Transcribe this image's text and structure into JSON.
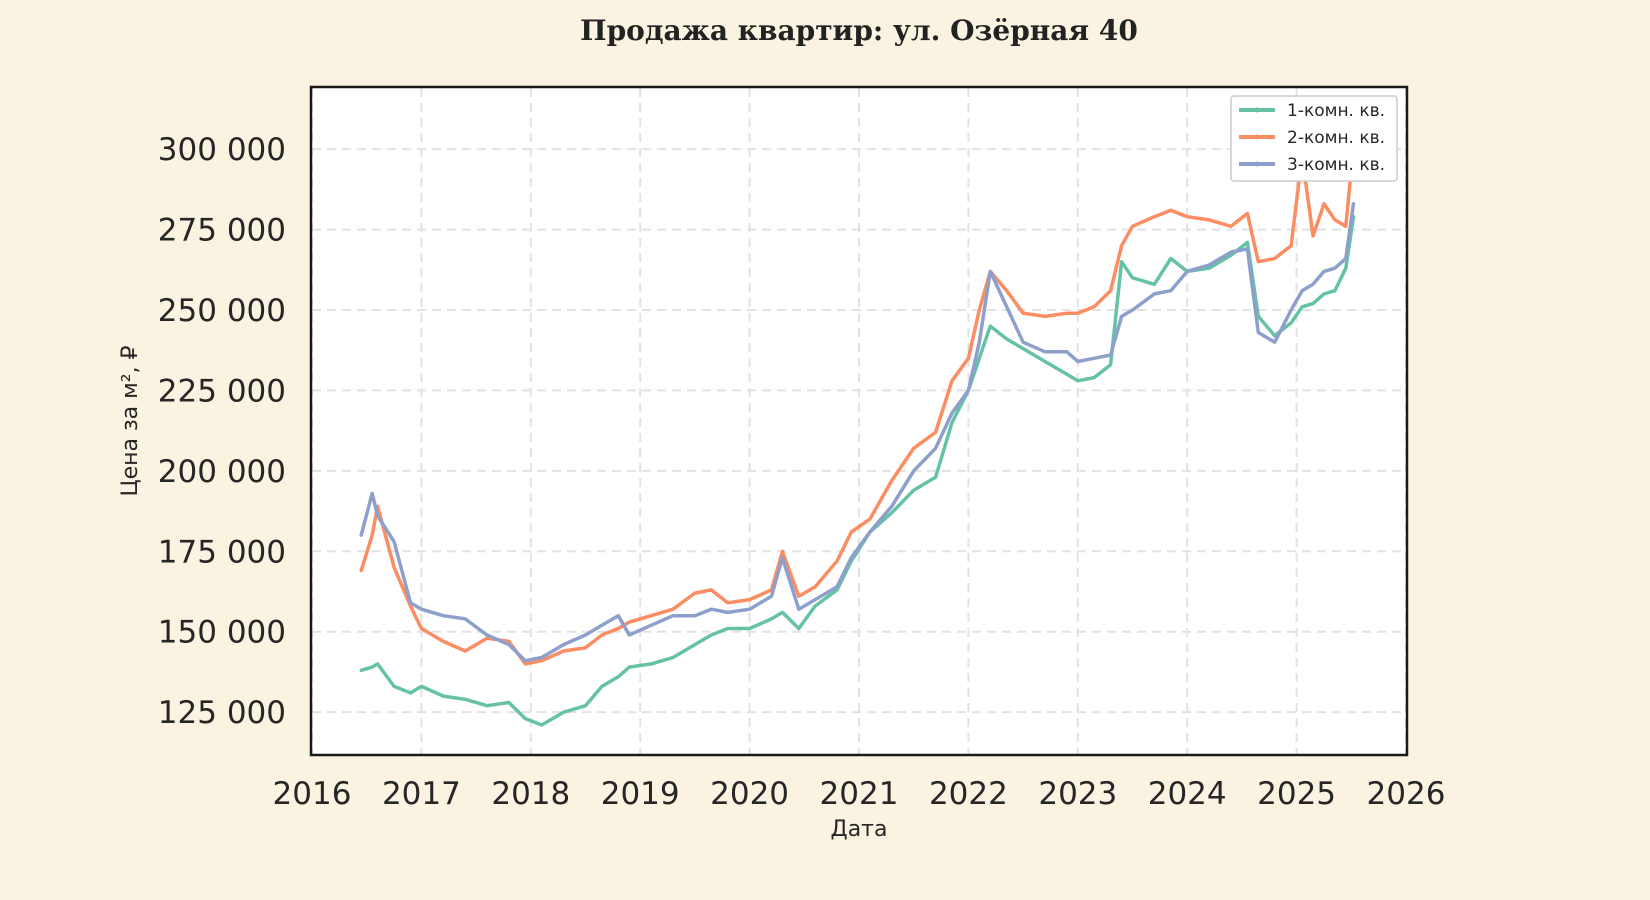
{
  "chart_data": {
    "type": "line",
    "title": "Продажа квартир: ул. Озёрная 40",
    "xlabel": "Дата",
    "ylabel": "Цена за м², ₽",
    "xlim": [
      2016.0,
      2026.0
    ],
    "ylim": [
      112000,
      319000
    ],
    "x_ticks": [
      "2016",
      "2017",
      "2018",
      "2019",
      "2020",
      "2021",
      "2022",
      "2023",
      "2024",
      "2025",
      "2026"
    ],
    "y_ticks": [
      125000,
      150000,
      175000,
      200000,
      225000,
      250000,
      275000,
      300000
    ],
    "y_tick_labels": [
      "125 000",
      "150 000",
      "175 000",
      "200 000",
      "225 000",
      "250 000",
      "275 000",
      "300 000"
    ],
    "grid": true,
    "legend_position": "top-right",
    "x": [
      2016.45,
      2016.55,
      2016.6,
      2016.75,
      2016.9,
      2017.0,
      2017.2,
      2017.4,
      2017.6,
      2017.8,
      2017.95,
      2018.1,
      2018.3,
      2018.5,
      2018.65,
      2018.8,
      2018.9,
      2019.1,
      2019.3,
      2019.5,
      2019.65,
      2019.8,
      2020.0,
      2020.2,
      2020.3,
      2020.45,
      2020.6,
      2020.8,
      2020.93,
      2021.1,
      2021.3,
      2021.5,
      2021.7,
      2021.85,
      2022.0,
      2022.1,
      2022.2,
      2022.35,
      2022.5,
      2022.7,
      2022.9,
      2023.0,
      2023.15,
      2023.3,
      2023.4,
      2023.5,
      2023.7,
      2023.85,
      2024.0,
      2024.2,
      2024.4,
      2024.55,
      2024.65,
      2024.8,
      2024.95,
      2025.05,
      2025.15,
      2025.25,
      2025.35,
      2025.45,
      2025.52
    ],
    "series": [
      {
        "name": "1-комн. кв.",
        "color": "#66c2a5",
        "values": [
          138000,
          139000,
          140000,
          133000,
          131000,
          133000,
          130000,
          129000,
          127000,
          128000,
          123000,
          121000,
          125000,
          127000,
          133000,
          136000,
          139000,
          140000,
          142000,
          146000,
          149000,
          151000,
          151000,
          154000,
          156000,
          151000,
          158000,
          163000,
          172000,
          181000,
          187000,
          194000,
          198000,
          215000,
          225000,
          235000,
          245000,
          241000,
          238000,
          234000,
          230000,
          228000,
          229000,
          233000,
          265000,
          260000,
          258000,
          266000,
          262000,
          263000,
          267000,
          271000,
          248000,
          242000,
          246000,
          251000,
          252000,
          255000,
          256000,
          263000,
          279000
        ]
      },
      {
        "name": "2-комн. кв.",
        "color": "#fc8d62",
        "values": [
          169000,
          180000,
          189000,
          170000,
          158000,
          151000,
          147000,
          144000,
          148000,
          147000,
          140000,
          141000,
          144000,
          145000,
          149000,
          151000,
          153000,
          155000,
          157000,
          162000,
          163000,
          159000,
          160000,
          163000,
          175000,
          161000,
          164000,
          172000,
          181000,
          185000,
          197000,
          207000,
          212000,
          228000,
          235000,
          250000,
          262000,
          256000,
          249000,
          248000,
          249000,
          249000,
          251000,
          256000,
          270000,
          276000,
          279000,
          281000,
          279000,
          278000,
          276000,
          280000,
          265000,
          266000,
          270000,
          298000,
          273000,
          283000,
          278000,
          276000,
          301000
        ]
      },
      {
        "name": "3-комн. кв.",
        "color": "#8da0cb",
        "values": [
          180000,
          193000,
          186000,
          178000,
          159000,
          157000,
          155000,
          154000,
          149000,
          146000,
          141000,
          142000,
          146000,
          149000,
          152000,
          155000,
          149000,
          152000,
          155000,
          155000,
          157000,
          156000,
          157000,
          161000,
          173000,
          157000,
          160000,
          164000,
          173000,
          181000,
          189000,
          200000,
          207000,
          218000,
          225000,
          240000,
          262000,
          251000,
          240000,
          237000,
          237000,
          234000,
          235000,
          236000,
          248000,
          250000,
          255000,
          256000,
          262000,
          264000,
          268000,
          269000,
          243000,
          240000,
          250000,
          256000,
          258000,
          262000,
          263000,
          266000,
          283000
        ]
      }
    ]
  }
}
